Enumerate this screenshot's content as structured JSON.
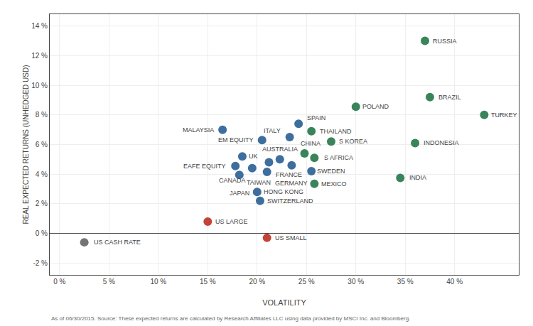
{
  "chart_data": {
    "type": "scatter",
    "xlabel": "VOLATILITY",
    "ylabel": "REAL EXPECTED RETURNS (UNHEDGED USD)",
    "footnote": "As of 06/30/2015. Source: These expected returns are calculated by Research Affiliates LLC using data provided by MSCI Inc. and Bloomberg.",
    "labels": [
      "US CASH RATE",
      "US LARGE",
      "US SMALL",
      "MALAYSIA",
      "EM EQUITY",
      "UK",
      "EAFE EQUITY",
      "JAPAN",
      "FRANCE",
      "CANADA",
      "TAIWAN",
      "HONG KONG",
      "SWITZERLAND",
      "SPAIN",
      "ITALY",
      "AUSTRALIA",
      "GERMANY",
      "SWEDEN",
      "THAILAND",
      "S KOREA",
      "CHINA",
      "S AFRICA",
      "MEXICO",
      "INDONESIA",
      "INDIA",
      "POLAND",
      "BRAZIL",
      "RUSSIA",
      "TURKEY"
    ],
    "x": [
      2.5,
      15.0,
      21.0,
      16.5,
      20.5,
      18.5,
      17.8,
      18.2,
      21.2,
      19.5,
      21.0,
      20.0,
      20.3,
      24.2,
      23.3,
      22.3,
      23.5,
      25.5,
      25.5,
      27.5,
      24.8,
      25.8,
      25.8,
      36.0,
      34.5,
      30.0,
      37.5,
      37.0,
      43.0
    ],
    "values": [
      -0.6,
      0.8,
      -0.3,
      7.0,
      6.3,
      5.2,
      4.55,
      3.95,
      4.8,
      4.4,
      4.15,
      2.8,
      2.2,
      7.4,
      6.5,
      5.0,
      4.6,
      4.2,
      6.9,
      6.2,
      5.4,
      5.1,
      3.35,
      6.1,
      3.75,
      8.55,
      9.2,
      13.0,
      8.0
    ],
    "colors": [
      "#6d6d6d",
      "#c0392b",
      "#c0392b",
      "#336699",
      "#336699",
      "#336699",
      "#336699",
      "#336699",
      "#336699",
      "#336699",
      "#336699",
      "#336699",
      "#336699",
      "#336699",
      "#336699",
      "#336699",
      "#336699",
      "#336699",
      "#2e7d52",
      "#2e7d52",
      "#2e7d52",
      "#2e7d52",
      "#2e7d52",
      "#2e7d52",
      "#2e7d52",
      "#2e7d52",
      "#2e7d52",
      "#2e7d52",
      "#2e7d52"
    ],
    "xlim": [
      -1.0,
      46.5
    ],
    "ylim": [
      -2.8,
      14.8
    ],
    "xticks": [
      {
        "value": 0,
        "label": "0 %"
      },
      {
        "value": 5,
        "label": "5 %"
      },
      {
        "value": 10,
        "label": "10 %"
      },
      {
        "value": 15,
        "label": "15 %"
      },
      {
        "value": 20,
        "label": "20 %"
      },
      {
        "value": 25,
        "label": "25 %"
      },
      {
        "value": 30,
        "label": "30 %"
      },
      {
        "value": 35,
        "label": "35 %"
      },
      {
        "value": 40,
        "label": "40 %"
      }
    ],
    "yticks": [
      {
        "value": -2,
        "label": "-2 %"
      },
      {
        "value": 0,
        "label": "0 %"
      },
      {
        "value": 2,
        "label": "2 %"
      },
      {
        "value": 4,
        "label": "4 %"
      },
      {
        "value": 6,
        "label": "6 %"
      },
      {
        "value": 8,
        "label": "8 %"
      },
      {
        "value": 10,
        "label": "10 %"
      },
      {
        "value": 12,
        "label": "12 %"
      },
      {
        "value": 14,
        "label": "14 %"
      }
    ],
    "grid": true
  }
}
